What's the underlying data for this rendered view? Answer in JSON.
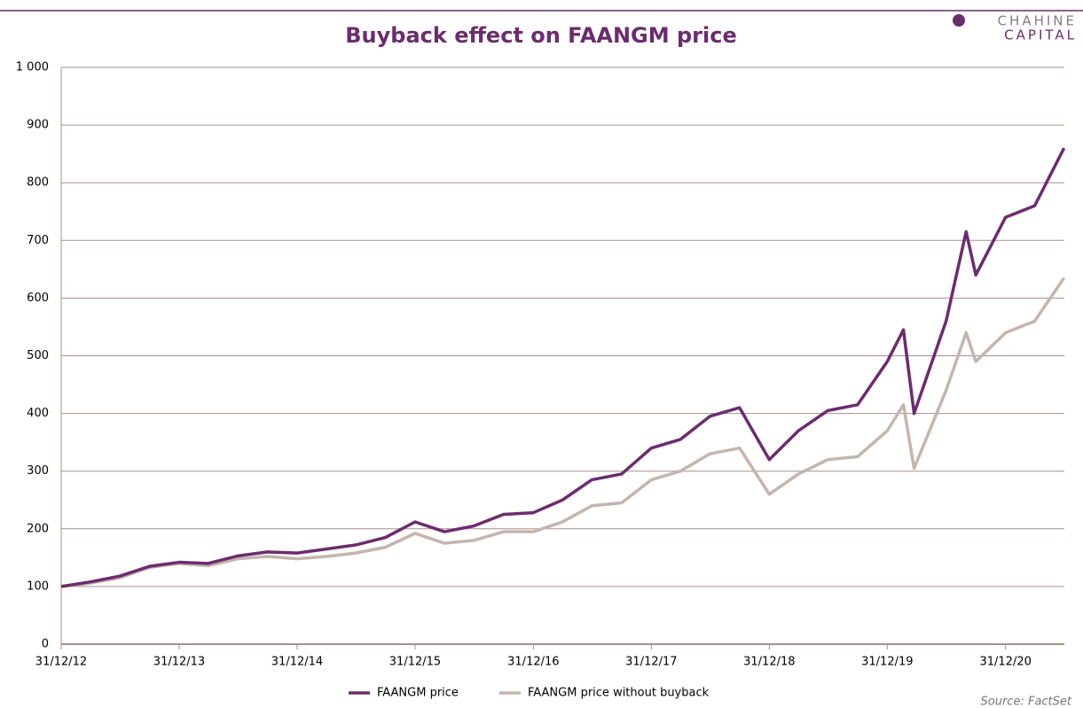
{
  "chart_data": {
    "type": "line",
    "title": "Buyback effect on FAANGM price",
    "logo": [
      "CHAHINE",
      "CAPITAL"
    ],
    "source": "Source: FactSet",
    "x": [
      "2012-12-31",
      "2013-03-31",
      "2013-06-30",
      "2013-09-30",
      "2013-12-31",
      "2014-03-31",
      "2014-06-30",
      "2014-09-30",
      "2014-12-31",
      "2015-03-31",
      "2015-06-30",
      "2015-09-30",
      "2015-12-31",
      "2016-03-31",
      "2016-06-30",
      "2016-09-30",
      "2016-12-31",
      "2017-03-31",
      "2017-06-30",
      "2017-09-30",
      "2017-12-31",
      "2018-03-31",
      "2018-06-30",
      "2018-09-30",
      "2018-12-31",
      "2019-03-31",
      "2019-06-30",
      "2019-09-30",
      "2019-12-31",
      "2020-02-19",
      "2020-03-23",
      "2020-06-30",
      "2020-08-31",
      "2020-09-30",
      "2020-12-31",
      "2021-03-31",
      "2021-06-30"
    ],
    "series": [
      {
        "name": "FAANGM price",
        "color": "#6b2c6e",
        "values": [
          100,
          108,
          118,
          135,
          142,
          140,
          153,
          160,
          158,
          165,
          172,
          185,
          212,
          195,
          205,
          225,
          228,
          250,
          285,
          295,
          340,
          355,
          395,
          410,
          320,
          370,
          405,
          415,
          490,
          545,
          400,
          560,
          715,
          640,
          740,
          760,
          860
        ]
      },
      {
        "name": "FAANGM price without buyback",
        "color": "#c4b5ad",
        "values": [
          100,
          106,
          115,
          133,
          140,
          136,
          148,
          152,
          148,
          152,
          158,
          168,
          192,
          175,
          180,
          195,
          195,
          212,
          240,
          245,
          285,
          300,
          330,
          340,
          260,
          295,
          320,
          325,
          370,
          415,
          305,
          440,
          540,
          490,
          540,
          560,
          635
        ]
      }
    ],
    "xlim": [
      "2012-12-31",
      "2021-07-01"
    ],
    "xticks": [
      {
        "value": "2012-12-31",
        "label": "31/12/12"
      },
      {
        "value": "2013-12-31",
        "label": "31/12/13"
      },
      {
        "value": "2014-12-31",
        "label": "31/12/14"
      },
      {
        "value": "2015-12-31",
        "label": "31/12/15"
      },
      {
        "value": "2016-12-31",
        "label": "31/12/16"
      },
      {
        "value": "2017-12-31",
        "label": "31/12/17"
      },
      {
        "value": "2018-12-31",
        "label": "31/12/18"
      },
      {
        "value": "2019-12-31",
        "label": "31/12/19"
      },
      {
        "value": "2020-12-31",
        "label": "31/12/20"
      }
    ],
    "ylim": [
      0,
      1000
    ],
    "yticks": [
      0,
      100,
      200,
      300,
      400,
      500,
      600,
      700,
      800,
      900,
      {
        "value": 1000,
        "label": "1 000"
      }
    ],
    "grid": true,
    "legend": "bottom"
  }
}
